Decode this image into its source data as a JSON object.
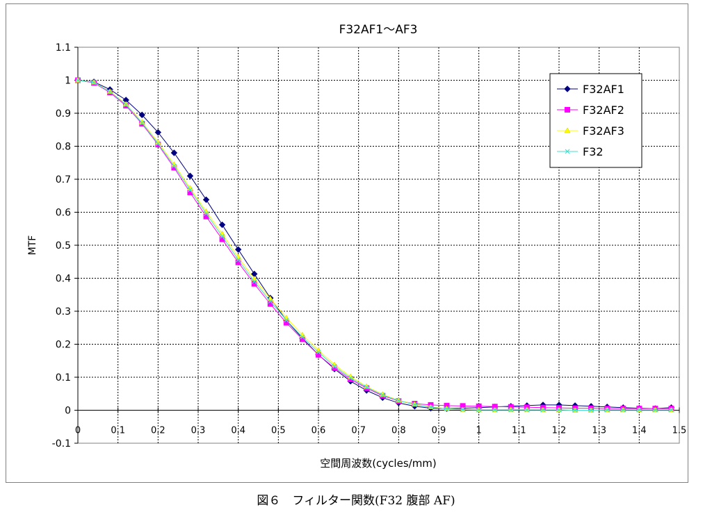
{
  "caption": "図６　フィルター関数(F32 腹部 AF)",
  "chart_data": {
    "type": "line",
    "title": "F32AF1～AF3",
    "xlabel": "空間周波数(cycles/mm)",
    "ylabel": "MTF",
    "xlim": [
      0,
      1.5
    ],
    "ylim": [
      -0.1,
      1.1
    ],
    "x_ticks": [
      0,
      0.1,
      0.2,
      0.3,
      0.4,
      0.5,
      0.6,
      0.7,
      0.8,
      0.9,
      1,
      1.1,
      1.2,
      1.3,
      1.4,
      1.5
    ],
    "y_ticks": [
      -0.1,
      0,
      0.1,
      0.2,
      0.3,
      0.4,
      0.5,
      0.6,
      0.7,
      0.8,
      0.9,
      1,
      1.1
    ],
    "x_tick_labels": [
      "0",
      "0.1",
      "0.2",
      "0.3",
      "0.4",
      "0.5",
      "0.6",
      "0.7",
      "0.8",
      "0.9",
      "1",
      "1.1",
      "1.2",
      "1.3",
      "1.4",
      "1.5"
    ],
    "y_tick_labels": [
      "-0.1",
      "0",
      "0.1",
      "0.2",
      "0.3",
      "0.4",
      "0.5",
      "0.6",
      "0.7",
      "0.8",
      "0.9",
      "1",
      "1.1"
    ],
    "grid": true,
    "legend_position": "top-right",
    "x": [
      0,
      0.04,
      0.08,
      0.12,
      0.16,
      0.2,
      0.24,
      0.28,
      0.32,
      0.36,
      0.4,
      0.44,
      0.48,
      0.52,
      0.56,
      0.6,
      0.64,
      0.68,
      0.72,
      0.76,
      0.8,
      0.84,
      0.88,
      0.92,
      0.96,
      1.0,
      1.04,
      1.08,
      1.12,
      1.16,
      1.2,
      1.24,
      1.28,
      1.32,
      1.36,
      1.4,
      1.44,
      1.48
    ],
    "series": [
      {
        "name": "F32AF1",
        "color": "#000080",
        "marker": "diamond",
        "values": [
          1,
          0.995,
          0.972,
          0.94,
          0.895,
          0.842,
          0.78,
          0.71,
          0.638,
          0.562,
          0.487,
          0.413,
          0.34,
          0.272,
          0.218,
          0.168,
          0.125,
          0.088,
          0.06,
          0.038,
          0.022,
          0.012,
          0.006,
          0.005,
          0.006,
          0.008,
          0.01,
          0.012,
          0.014,
          0.016,
          0.016,
          0.014,
          0.012,
          0.01,
          0.008,
          0.006,
          0.005,
          0.008
        ]
      },
      {
        "name": "F32AF2",
        "color": "#ff00ff",
        "marker": "square",
        "values": [
          1,
          0.992,
          0.963,
          0.923,
          0.868,
          0.805,
          0.735,
          0.66,
          0.587,
          0.518,
          0.448,
          0.383,
          0.322,
          0.265,
          0.215,
          0.168,
          0.128,
          0.094,
          0.067,
          0.044,
          0.028,
          0.02,
          0.016,
          0.014,
          0.013,
          0.012,
          0.011,
          0.01,
          0.009,
          0.008,
          0.007,
          0.006,
          0.006,
          0.005,
          0.005,
          0.005,
          0.005,
          0.005
        ]
      },
      {
        "name": "F32AF3",
        "color": "#ffff00",
        "marker": "triangle",
        "values": [
          1,
          0.994,
          0.966,
          0.928,
          0.873,
          0.812,
          0.745,
          0.673,
          0.602,
          0.535,
          0.464,
          0.398,
          0.338,
          0.28,
          0.228,
          0.182,
          0.138,
          0.102,
          0.072,
          0.048,
          0.03,
          0.018,
          0.01,
          0.005,
          0.002,
          0.001,
          0.001,
          0.002,
          0.002,
          0.001,
          0.001,
          0.0,
          0.0,
          0.001,
          0.001,
          0.001,
          0.001,
          0.001
        ]
      },
      {
        "name": "F32",
        "color": "#40e0d0",
        "marker": "x",
        "values": [
          1,
          0.993,
          0.965,
          0.926,
          0.871,
          0.808,
          0.74,
          0.668,
          0.596,
          0.527,
          0.456,
          0.39,
          0.33,
          0.273,
          0.222,
          0.176,
          0.133,
          0.098,
          0.07,
          0.046,
          0.029,
          0.017,
          0.009,
          0.004,
          0.002,
          0.001,
          0.001,
          0.001,
          0.001,
          0.001,
          0.001,
          0.0,
          0.0,
          0.001,
          0.001,
          0.001,
          0.001,
          0.001
        ]
      }
    ]
  }
}
